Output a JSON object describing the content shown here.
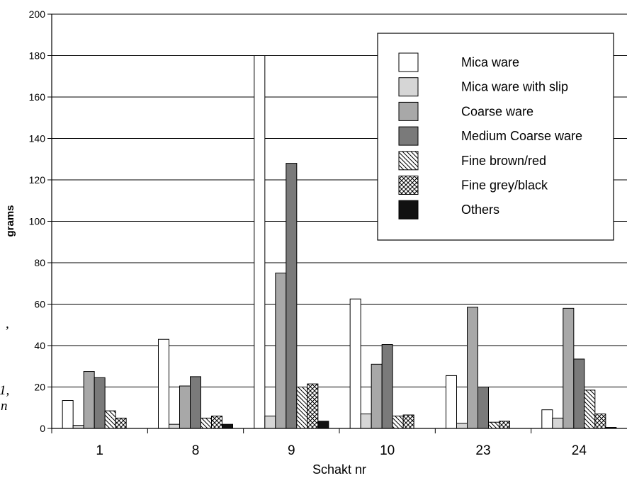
{
  "chart_data": {
    "type": "bar",
    "ylabel": "grams",
    "xlabel": "Schakt nr",
    "ylim": [
      0,
      200
    ],
    "yticks": [
      "0",
      "20",
      "40",
      "60",
      "80",
      "100",
      "120",
      "140",
      "160",
      "180",
      "200"
    ],
    "categories": [
      "1",
      "8",
      "9",
      "10",
      "23",
      "24"
    ],
    "grid": true,
    "legend_position": "top-right",
    "series": [
      {
        "name": "Mica ware",
        "values": [
          13.5,
          43,
          180,
          62.5,
          25.5,
          9
        ],
        "fill": "#ffffff"
      },
      {
        "name": "Mica ware with slip",
        "values": [
          1.5,
          2,
          6,
          7,
          2.5,
          5
        ],
        "fill": "#d6d6d6"
      },
      {
        "name": "Coarse ware",
        "values": [
          27.5,
          20.5,
          75,
          31,
          58.5,
          58
        ],
        "fill": "#a8a8a8"
      },
      {
        "name": "Medium Coarse ware",
        "values": [
          24.5,
          25,
          128,
          40.5,
          20,
          33.5
        ],
        "fill": "#7a7a7a"
      },
      {
        "name": "Fine brown/red",
        "values": [
          8.5,
          5,
          20,
          6,
          3,
          18.5
        ],
        "fill": "hatch"
      },
      {
        "name": "Fine grey/black",
        "values": [
          5,
          6,
          21.5,
          6.5,
          3.5,
          7
        ],
        "fill": "crosshatch"
      },
      {
        "name": "Others",
        "values": [
          0,
          2,
          3.5,
          0,
          0,
          0.5
        ],
        "fill": "#111111"
      }
    ]
  },
  "side_fragments": [
    ",",
    "1,",
    "n"
  ]
}
